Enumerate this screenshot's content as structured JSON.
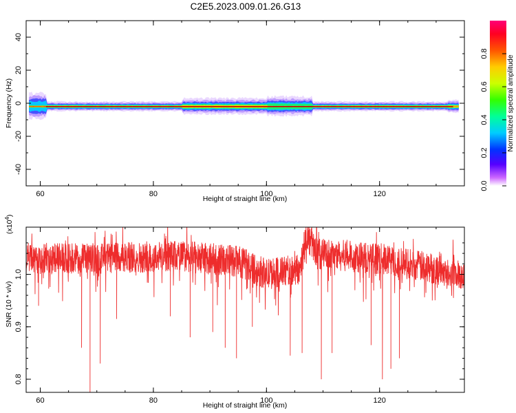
{
  "title": "C2E5.2023.009.01.26.G13",
  "chart_data": [
    {
      "type": "heatmap",
      "xlabel": "Height of straight line (km)",
      "ylabel": "Frequency (Hz)",
      "xlim": [
        57.5,
        135
      ],
      "ylim": [
        -50,
        50
      ],
      "xticks": [
        "60",
        "80",
        "100",
        "120"
      ],
      "yticks": [
        "40",
        "20",
        "0",
        "-20",
        "-40"
      ],
      "ridge_frequency_hz": -2,
      "ridge_segments": [
        {
          "x_start": 58,
          "x_end": 61,
          "spread_hz": 8,
          "peak": 0.6
        },
        {
          "x_start": 61,
          "x_end": 85,
          "spread_hz": 3,
          "peak": 0.95
        },
        {
          "x_start": 85,
          "x_end": 100,
          "spread_hz": 5,
          "peak": 0.95
        },
        {
          "x_start": 100,
          "x_end": 108,
          "spread_hz": 6,
          "peak": 0.75
        },
        {
          "x_start": 108,
          "x_end": 132,
          "spread_hz": 3,
          "peak": 0.95
        },
        {
          "x_start": 132,
          "x_end": 134,
          "spread_hz": 4,
          "peak": 0.9
        }
      ],
      "colorbar": {
        "label": "Normalized spectral amplitude",
        "ticks": [
          "0.0",
          "0.2",
          "0.4",
          "0.6",
          "0.8"
        ],
        "range": [
          0,
          1
        ]
      },
      "grid": false
    },
    {
      "type": "line",
      "xlabel": "Height of straight line (km)",
      "ylabel": "SNR (10 * v/v)",
      "scale_label_base": "(x10",
      "scale_label_exp": "4",
      "scale_label_end": ")",
      "xlim": [
        57.5,
        135
      ],
      "ylim": [
        0.775,
        1.09
      ],
      "xticks": [
        "60",
        "80",
        "100",
        "120"
      ],
      "yticks": [
        "1.0",
        "0.9",
        "0.8"
      ],
      "series": [
        {
          "color": "#ee2c2c",
          "baseline": [
            {
              "x": 57.5,
              "y": 1.03
            },
            {
              "x": 70,
              "y": 1.03
            },
            {
              "x": 85,
              "y": 1.035
            },
            {
              "x": 95,
              "y": 1.025
            },
            {
              "x": 100,
              "y": 1.0
            },
            {
              "x": 106,
              "y": 1.01
            },
            {
              "x": 107,
              "y": 1.075
            },
            {
              "x": 109,
              "y": 1.04
            },
            {
              "x": 120,
              "y": 1.03
            },
            {
              "x": 135,
              "y": 1.0
            }
          ],
          "dips": [
            {
              "x": 59.7,
              "y": 0.94
            },
            {
              "x": 67.3,
              "y": 0.86
            },
            {
              "x": 68.8,
              "y": 0.774
            },
            {
              "x": 70.6,
              "y": 0.83
            },
            {
              "x": 73.5,
              "y": 0.915
            },
            {
              "x": 83.0,
              "y": 0.92
            },
            {
              "x": 86.5,
              "y": 0.88
            },
            {
              "x": 90.5,
              "y": 0.89
            },
            {
              "x": 92.7,
              "y": 0.86
            },
            {
              "x": 94.7,
              "y": 0.84
            },
            {
              "x": 97.5,
              "y": 0.9
            },
            {
              "x": 104.2,
              "y": 0.845
            },
            {
              "x": 106.3,
              "y": 0.85
            },
            {
              "x": 109.7,
              "y": 0.8
            },
            {
              "x": 111.6,
              "y": 0.85
            },
            {
              "x": 118.5,
              "y": 0.865
            },
            {
              "x": 120.5,
              "y": 0.8
            },
            {
              "x": 122.0,
              "y": 0.82
            },
            {
              "x": 123.5,
              "y": 0.84
            }
          ]
        }
      ],
      "grid": false
    }
  ]
}
